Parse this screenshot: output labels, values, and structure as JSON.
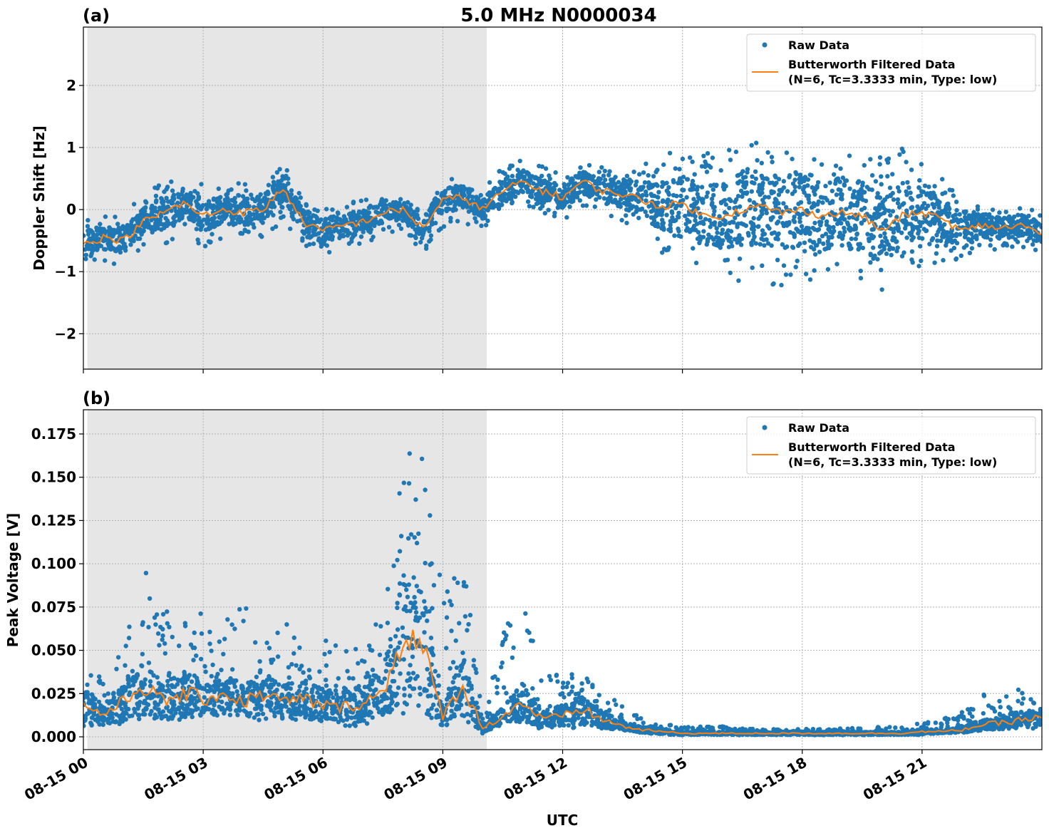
{
  "title": "5.0 MHz N0000034",
  "colors": {
    "raw": "#1f77b4",
    "filtered": "#ff7f0e",
    "night_shade": "#e6e6e6",
    "grid": "#b0b0b0"
  },
  "chart_data": [
    {
      "type": "scatter+line",
      "panel_label": "(a)",
      "title": "5.0 MHz N0000034",
      "ylabel": "Doppler Shift [Hz]",
      "xlabel": "",
      "xlim_hours_utc": [
        0,
        24
      ],
      "ylim": [
        -2.57,
        2.94
      ],
      "yticks": [
        -2,
        -1,
        0,
        1,
        2
      ],
      "ytick_labels": [
        "−2",
        "−1",
        "0",
        "1",
        "2"
      ],
      "grid": true,
      "legend_placement": "top-right",
      "shaded_interval_hours": [
        0.1,
        10.1
      ],
      "x_hours": [
        0,
        0.5,
        1,
        1.5,
        2,
        2.5,
        3,
        3.5,
        4,
        4.5,
        5,
        5.5,
        6,
        6.5,
        7,
        7.5,
        8,
        8.5,
        9,
        9.5,
        10,
        10.5,
        11,
        11.5,
        12,
        12.5,
        13,
        13.5,
        14,
        14.5,
        15,
        15.5,
        16,
        16.5,
        17,
        17.5,
        18,
        18.5,
        19,
        19.5,
        20,
        20.5,
        21,
        21.5,
        22,
        22.5,
        23,
        23.5,
        24
      ],
      "series": [
        {
          "name": "Raw Data",
          "kind": "scatter",
          "range_low": [
            -0.9,
            -0.85,
            -0.9,
            -0.6,
            -0.6,
            -0.4,
            -0.6,
            -0.5,
            -0.45,
            -0.45,
            -0.2,
            -0.6,
            -0.8,
            -0.65,
            -0.6,
            -0.45,
            -0.35,
            -0.7,
            -0.3,
            -0.2,
            -0.35,
            -0.1,
            0.1,
            -0.05,
            -0.2,
            0.05,
            -0.1,
            -0.2,
            -0.4,
            -0.7,
            -0.8,
            -1.0,
            -1.1,
            -1.2,
            -1.2,
            -1.3,
            -1.2,
            -1.3,
            -1.2,
            -1.2,
            -1.3,
            -1.0,
            -0.9,
            -0.9,
            -0.8,
            -0.65,
            -0.65,
            -0.6,
            -0.7
          ],
          "range_high": [
            -0.1,
            -0.1,
            -0.1,
            0.3,
            0.45,
            0.55,
            0.4,
            0.4,
            0.45,
            0.4,
            0.75,
            0.2,
            0.05,
            0.1,
            0.15,
            0.3,
            0.15,
            0.05,
            0.5,
            0.55,
            0.3,
            0.7,
            0.85,
            0.7,
            0.6,
            0.8,
            0.7,
            0.7,
            0.75,
            0.9,
            1.0,
            0.9,
            1.0,
            1.2,
            1.3,
            1.1,
            1.2,
            1.1,
            1.1,
            1.0,
            0.9,
            1.0,
            0.8,
            0.6,
            0.3,
            0.15,
            0.05,
            0.05,
            -0.05
          ]
        },
        {
          "name": "Butterworth Filtered Data\n(N=6, Tc=3.3333 min, Type: low)",
          "kind": "line",
          "values": [
            -0.55,
            -0.45,
            -0.5,
            -0.2,
            -0.05,
            0.1,
            -0.1,
            0.0,
            -0.05,
            0.0,
            0.35,
            -0.2,
            -0.35,
            -0.25,
            -0.2,
            -0.05,
            0.0,
            -0.3,
            0.15,
            0.2,
            0.0,
            0.3,
            0.45,
            0.3,
            0.2,
            0.45,
            0.3,
            0.25,
            0.15,
            0.05,
            0.1,
            -0.1,
            -0.1,
            0.0,
            0.05,
            -0.05,
            0.0,
            -0.1,
            -0.05,
            -0.1,
            -0.35,
            -0.1,
            -0.05,
            -0.15,
            -0.35,
            -0.25,
            -0.3,
            -0.25,
            -0.4
          ]
        }
      ],
      "legend": [
        "Raw Data",
        "Butterworth Filtered Data",
        "(N=6, Tc=3.3333 min, Type: low)"
      ]
    },
    {
      "type": "scatter+line",
      "panel_label": "(b)",
      "ylabel": "Peak Voltage [V]",
      "xlabel": "UTC",
      "xlim_hours_utc": [
        0,
        24
      ],
      "ylim": [
        -0.0074,
        0.189
      ],
      "yticks": [
        0,
        0.025,
        0.05,
        0.075,
        0.1,
        0.125,
        0.15,
        0.175
      ],
      "ytick_labels": [
        "0.000",
        "0.025",
        "0.050",
        "0.075",
        "0.100",
        "0.125",
        "0.150",
        "0.175"
      ],
      "xticks_hours": [
        0,
        3,
        6,
        9,
        12,
        15,
        18,
        21
      ],
      "xtick_labels": [
        "08-15 00",
        "08-15 03",
        "08-15 06",
        "08-15 09",
        "08-15 12",
        "08-15 15",
        "08-15 18",
        "08-15 21"
      ],
      "grid": true,
      "legend_placement": "top-right",
      "shaded_interval_hours": [
        0.1,
        10.1
      ],
      "x_hours": [
        0,
        0.5,
        1,
        1.5,
        2,
        2.5,
        3,
        3.5,
        4,
        4.5,
        5,
        5.5,
        6,
        6.5,
        7,
        7.5,
        8,
        8.5,
        9,
        9.5,
        10,
        10.5,
        11,
        11.5,
        12,
        12.5,
        13,
        13.5,
        14,
        14.5,
        15,
        15.5,
        16,
        16.5,
        17,
        17.5,
        18,
        18.5,
        19,
        19.5,
        20,
        20.5,
        21,
        21.5,
        22,
        22.5,
        23,
        23.5,
        24
      ],
      "series": [
        {
          "name": "Raw Data",
          "kind": "scatter",
          "range_low": [
            0.005,
            0.005,
            0.007,
            0.008,
            0.007,
            0.008,
            0.008,
            0.009,
            0.008,
            0.009,
            0.008,
            0.008,
            0.006,
            0.006,
            0.006,
            0.007,
            0.01,
            0.005,
            0.004,
            0.006,
            0.002,
            0.006,
            0.006,
            0.004,
            0.004,
            0.005,
            0.004,
            0.003,
            0.002,
            0.001,
            0.001,
            0.001,
            0.001,
            0.001,
            0.001,
            0.001,
            0.001,
            0.001,
            0.001,
            0.001,
            0.001,
            0.001,
            0.001,
            0.002,
            0.002,
            0.003,
            0.003,
            0.004,
            0.004
          ],
          "range_high": [
            0.04,
            0.035,
            0.05,
            0.1,
            0.075,
            0.065,
            0.09,
            0.075,
            0.08,
            0.06,
            0.07,
            0.05,
            0.06,
            0.05,
            0.055,
            0.075,
            0.18,
            0.165,
            0.1,
            0.105,
            0.015,
            0.06,
            0.083,
            0.035,
            0.04,
            0.038,
            0.03,
            0.02,
            0.012,
            0.008,
            0.006,
            0.006,
            0.006,
            0.005,
            0.005,
            0.005,
            0.005,
            0.005,
            0.005,
            0.005,
            0.006,
            0.006,
            0.008,
            0.01,
            0.015,
            0.025,
            0.025,
            0.03,
            0.02
          ]
        },
        {
          "name": "Butterworth Filtered Data\n(N=6, Tc=3.3333 min, Type: low)",
          "kind": "line",
          "values": [
            0.018,
            0.013,
            0.02,
            0.03,
            0.02,
            0.025,
            0.022,
            0.025,
            0.02,
            0.025,
            0.02,
            0.022,
            0.018,
            0.017,
            0.02,
            0.025,
            0.06,
            0.05,
            0.012,
            0.03,
            0.005,
            0.012,
            0.02,
            0.01,
            0.012,
            0.016,
            0.01,
            0.006,
            0.004,
            0.003,
            0.002,
            0.002,
            0.002,
            0.002,
            0.002,
            0.002,
            0.002,
            0.002,
            0.002,
            0.002,
            0.002,
            0.002,
            0.003,
            0.003,
            0.004,
            0.007,
            0.008,
            0.01,
            0.011
          ]
        }
      ],
      "legend": [
        "Raw Data",
        "Butterworth Filtered Data",
        "(N=6, Tc=3.3333 min, Type: low)"
      ]
    }
  ]
}
